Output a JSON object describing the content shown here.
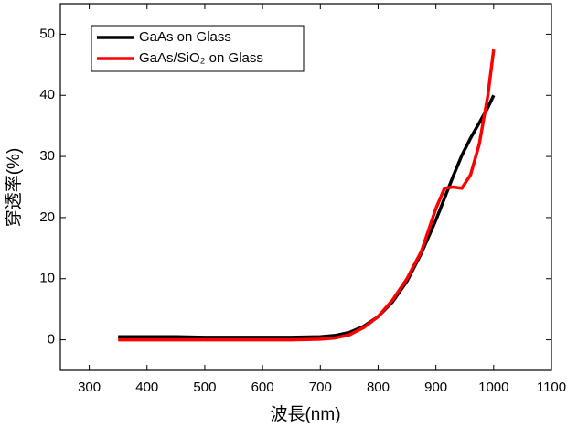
{
  "chart_data": {
    "type": "line",
    "x_label": "波長(nm)",
    "y_label": "穿透率(%)",
    "x": [
      350,
      400,
      450,
      500,
      550,
      600,
      650,
      700,
      725,
      750,
      775,
      800,
      825,
      850,
      875,
      900,
      915,
      930,
      945,
      960,
      975,
      990,
      1000
    ],
    "series": [
      {
        "name": "GaAs on Glass",
        "color": "#000000",
        "values": [
          0.5,
          0.5,
          0.5,
          0.4,
          0.4,
          0.4,
          0.4,
          0.5,
          0.7,
          1.2,
          2.2,
          3.8,
          6.2,
          9.6,
          14.2,
          19.6,
          23.2,
          26.8,
          30.2,
          33,
          35.5,
          38,
          40
        ]
      },
      {
        "name": "GaAs/SiO₂ on Glass",
        "color": "#ff0000",
        "values": [
          0,
          0,
          0,
          0,
          0,
          0,
          0,
          0.1,
          0.3,
          0.8,
          2,
          3.8,
          6.5,
          10,
          14.5,
          21.5,
          24.8,
          25,
          24.8,
          27,
          32,
          40,
          47.5
        ]
      }
    ],
    "xlim": [
      250,
      1100
    ],
    "xticks": [
      300,
      400,
      500,
      600,
      700,
      800,
      900,
      1000,
      1100
    ],
    "ylim": [
      -5,
      55
    ],
    "yticks": [
      0,
      10,
      20,
      30,
      40,
      50
    ],
    "legend": "upper left"
  }
}
